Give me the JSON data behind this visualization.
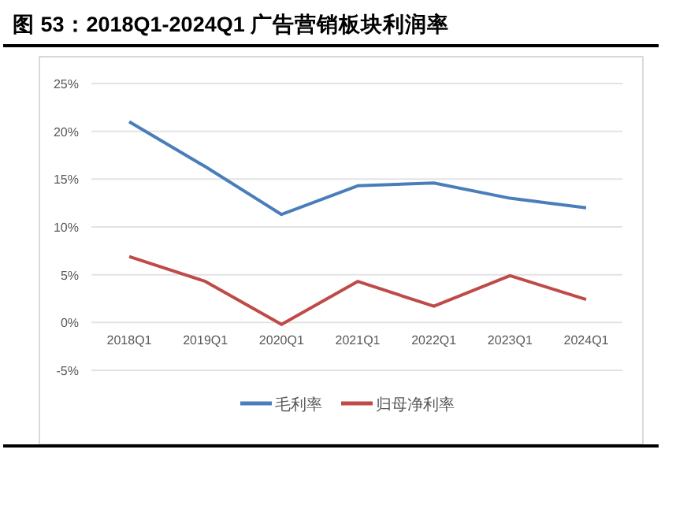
{
  "chart_data": {
    "type": "line",
    "title": "图 53：2018Q1-2024Q1 广告营销板块利润率",
    "categories": [
      "2018Q1",
      "2019Q1",
      "2020Q1",
      "2021Q1",
      "2022Q1",
      "2023Q1",
      "2024Q1"
    ],
    "series": [
      {
        "name": "毛利率",
        "color": "#4a7ebb",
        "values": [
          21.0,
          16.3,
          11.3,
          14.3,
          14.6,
          13.0,
          12.0
        ]
      },
      {
        "name": "归母净利率",
        "color": "#be4b48",
        "values": [
          6.9,
          4.3,
          -0.2,
          4.3,
          1.7,
          4.9,
          2.4
        ]
      }
    ],
    "ylim": [
      -5,
      25
    ],
    "yticks": [
      {
        "value": -5,
        "label": "-5%"
      },
      {
        "value": 0,
        "label": "0%"
      },
      {
        "value": 5,
        "label": "5%"
      },
      {
        "value": 10,
        "label": "10%"
      },
      {
        "value": 15,
        "label": "15%"
      },
      {
        "value": 20,
        "label": "20%"
      },
      {
        "value": 25,
        "label": "25%"
      }
    ],
    "grid": "y",
    "legend": "bottom",
    "marker": "none",
    "line_style": "solid"
  }
}
